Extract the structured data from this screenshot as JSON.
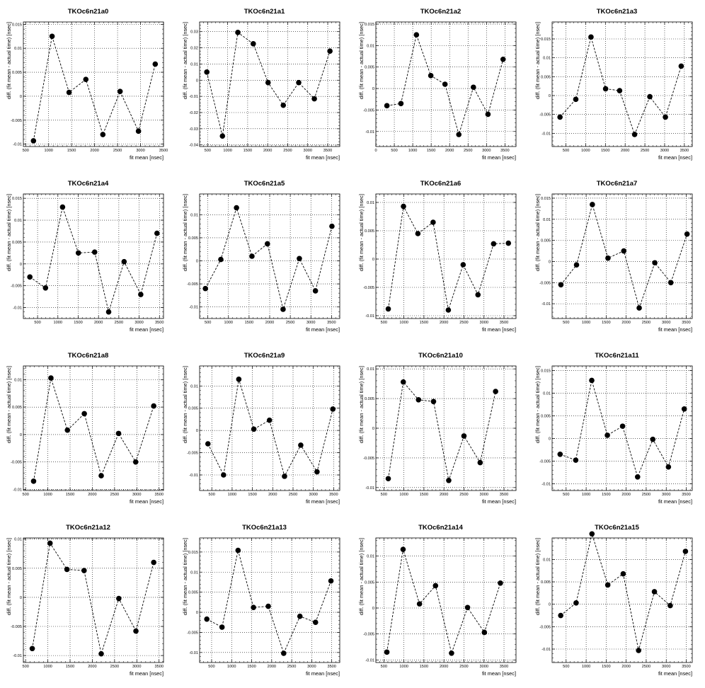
{
  "figure": {
    "xlabel": "fit mean [nsec]",
    "ylabel": "diff. (fit mean - actual time) [nsec]"
  },
  "chart_data": [
    {
      "type": "scatter",
      "title": "TKOc6n21a0",
      "xlim": [
        450,
        3500
      ],
      "ylim": [
        -0.0105,
        0.0155
      ],
      "xticks": [
        500,
        1000,
        1500,
        2000,
        2500,
        3000,
        3500
      ],
      "yticks": [
        -0.01,
        -0.005,
        0,
        0.005,
        0.01,
        0.015
      ],
      "ytick_labels": [
        "-0.01",
        "-0.005",
        "0",
        "0.005",
        "0.01",
        "0.015"
      ],
      "grid": true,
      "line_style": "dashed",
      "x": [
        670,
        1075,
        1445,
        1810,
        2180,
        2555,
        2955,
        3320
      ],
      "y": [
        -0.0093,
        0.0125,
        0.0008,
        0.0035,
        -0.008,
        0.001,
        -0.0073,
        0.0067
      ]
    },
    {
      "type": "scatter",
      "title": "TKOc6n21a1",
      "xlim": [
        300,
        3800
      ],
      "ylim": [
        -0.041,
        0.036
      ],
      "xticks": [
        500,
        1000,
        1500,
        2000,
        2500,
        3000,
        3500
      ],
      "yticks": [
        -0.04,
        -0.03,
        -0.02,
        -0.01,
        0,
        0.01,
        0.02,
        0.03
      ],
      "ytick_labels": [
        "-0.04",
        "-0.03",
        "-0.02",
        "-0.01",
        "0",
        "0.01",
        "0.02",
        "0.03"
      ],
      "grid": true,
      "line_style": "dashed",
      "x": [
        480,
        870,
        1255,
        1640,
        2010,
        2390,
        2775,
        3165,
        3555
      ],
      "y": [
        0.005,
        -0.0345,
        0.0295,
        0.0225,
        -0.0015,
        -0.0155,
        -0.0015,
        -0.0115,
        0.018
      ]
    },
    {
      "type": "scatter",
      "title": "TKOc6n21a2",
      "xlim": [
        0,
        3800
      ],
      "ylim": [
        -0.0135,
        0.0155
      ],
      "xticks": [
        0,
        500,
        1000,
        1500,
        2000,
        2500,
        3000,
        3500
      ],
      "yticks": [
        -0.01,
        -0.005,
        0,
        0.005,
        0.01,
        0.015
      ],
      "ytick_labels": [
        "-0.01",
        "-0.005",
        "0",
        "0.005",
        "0.01",
        "0.015"
      ],
      "grid": true,
      "line_style": "dashed",
      "x": [
        300,
        680,
        1100,
        1490,
        1875,
        2250,
        2645,
        3040,
        3450
      ],
      "y": [
        -0.004,
        -0.0035,
        0.0125,
        0.003,
        0.001,
        -0.0107,
        0.0003,
        -0.006,
        0.0068
      ]
    },
    {
      "type": "scatter",
      "title": "TKOc6n21a3",
      "xlim": [
        150,
        3700
      ],
      "ylim": [
        -0.0135,
        0.0195
      ],
      "xticks": [
        500,
        1000,
        1500,
        2000,
        2500,
        3000,
        3500
      ],
      "yticks": [
        -0.01,
        -0.005,
        0,
        0.005,
        0.01,
        0.015
      ],
      "ytick_labels": [
        "-0.01",
        "-0.005",
        "0",
        "0.005",
        "0.01",
        "0.015"
      ],
      "grid": true,
      "line_style": "dashed",
      "x": [
        350,
        750,
        1135,
        1505,
        1860,
        2240,
        2625,
        3020,
        3420
      ],
      "y": [
        -0.0057,
        -0.001,
        0.0155,
        0.0018,
        0.0013,
        -0.0103,
        -0.0003,
        -0.0057,
        0.0078
      ]
    },
    {
      "type": "scatter",
      "title": "TKOc6n21a4",
      "xlim": [
        150,
        3600
      ],
      "ylim": [
        -0.0125,
        0.016
      ],
      "xticks": [
        500,
        1000,
        1500,
        2000,
        2500,
        3000,
        3500
      ],
      "yticks": [
        -0.01,
        -0.005,
        0,
        0.005,
        0.01,
        0.015
      ],
      "ytick_labels": [
        "-0.01",
        "-0.005",
        "0",
        "0.005",
        "0.01",
        "0.015"
      ],
      "grid": true,
      "line_style": "dashed",
      "x": [
        310,
        695,
        1115,
        1505,
        1905,
        2250,
        2630,
        3040,
        3440
      ],
      "y": [
        -0.003,
        -0.0055,
        0.013,
        0.0025,
        0.0027,
        -0.011,
        0.0005,
        -0.007,
        0.007
      ]
    },
    {
      "type": "scatter",
      "title": "TKOc6n21a5",
      "xlim": [
        300,
        3700
      ],
      "ylim": [
        -0.0125,
        0.0145
      ],
      "xticks": [
        500,
        1000,
        1500,
        2000,
        2500,
        3000,
        3500
      ],
      "yticks": [
        -0.01,
        -0.005,
        0,
        0.005,
        0.01
      ],
      "ytick_labels": [
        "-0.01",
        "-0.005",
        "0",
        "0.005",
        "0.01"
      ],
      "grid": true,
      "line_style": "dashed",
      "x": [
        440,
        815,
        1195,
        1570,
        1945,
        2325,
        2720,
        3110,
        3510
      ],
      "y": [
        -0.006,
        0.0003,
        0.0115,
        0.001,
        0.0037,
        -0.0105,
        0.0005,
        -0.0065,
        0.0075
      ]
    },
    {
      "type": "scatter",
      "title": "TKOc6n21a6",
      "xlim": [
        300,
        3800
      ],
      "ylim": [
        -0.0105,
        0.0115
      ],
      "xticks": [
        500,
        1000,
        1500,
        2000,
        2500,
        3000,
        3500
      ],
      "yticks": [
        -0.01,
        -0.005,
        0,
        0.005,
        0.01
      ],
      "ytick_labels": [
        "-0.01",
        "-0.005",
        "0",
        "0.005",
        "0.01"
      ],
      "grid": true,
      "line_style": "dashed",
      "x": [
        610,
        990,
        1350,
        1730,
        2110,
        2480,
        2850,
        3240,
        3610
      ],
      "y": [
        -0.0088,
        0.0093,
        0.0045,
        0.0065,
        -0.009,
        -0.001,
        -0.0063,
        0.0027,
        0.0028
      ]
    },
    {
      "type": "scatter",
      "title": "TKOc6n21a7",
      "xlim": [
        150,
        3650
      ],
      "ylim": [
        -0.0135,
        0.016
      ],
      "xticks": [
        500,
        1000,
        1500,
        2000,
        2500,
        3000,
        3500
      ],
      "yticks": [
        -0.01,
        -0.005,
        0,
        0.005,
        0.01,
        0.015
      ],
      "ytick_labels": [
        "-0.01",
        "-0.005",
        "0",
        "0.005",
        "0.01",
        "0.015"
      ],
      "grid": true,
      "line_style": "dashed",
      "x": [
        370,
        760,
        1155,
        1545,
        1940,
        2325,
        2715,
        3115,
        3520
      ],
      "y": [
        -0.0055,
        -0.0008,
        0.0135,
        0.0008,
        0.0025,
        -0.011,
        -0.0003,
        -0.005,
        0.0065
      ]
    },
    {
      "type": "scatter",
      "title": "TKOc6n21a8",
      "xlim": [
        450,
        3600
      ],
      "ylim": [
        -0.0102,
        0.0125
      ],
      "xticks": [
        500,
        1000,
        1500,
        2000,
        2500,
        3000,
        3500
      ],
      "yticks": [
        -0.01,
        -0.005,
        0,
        0.005,
        0.01
      ],
      "ytick_labels": [
        "-0.01",
        "-0.005",
        "0",
        "0.005",
        "0.01"
      ],
      "grid": true,
      "line_style": "dashed",
      "x": [
        680,
        1070,
        1440,
        1820,
        2200,
        2590,
        2975,
        3380
      ],
      "y": [
        -0.0085,
        0.0103,
        0.0008,
        0.0038,
        -0.0075,
        0.0002,
        -0.005,
        0.0052
      ]
    },
    {
      "type": "scatter",
      "title": "TKOc6n21a9",
      "xlim": [
        200,
        3650
      ],
      "ylim": [
        -0.0135,
        0.0145
      ],
      "xticks": [
        500,
        1000,
        1500,
        2000,
        2500,
        3000,
        3500
      ],
      "yticks": [
        -0.01,
        -0.005,
        0,
        0.005,
        0.01
      ],
      "ytick_labels": [
        "-0.01",
        "-0.005",
        "0",
        "0.005",
        "0.01"
      ],
      "grid": true,
      "line_style": "dashed",
      "x": [
        405,
        790,
        1165,
        1535,
        1920,
        2290,
        2690,
        3090,
        3480
      ],
      "y": [
        -0.003,
        -0.01,
        0.0115,
        0.0003,
        0.0023,
        -0.0103,
        -0.0033,
        -0.0093,
        0.0048
      ]
    },
    {
      "type": "scatter",
      "title": "TKOc6n21a10",
      "xlim": [
        300,
        3800
      ],
      "ylim": [
        -0.0105,
        0.0105
      ],
      "xticks": [
        500,
        1000,
        1500,
        2000,
        2500,
        3000,
        3500
      ],
      "yticks": [
        -0.01,
        -0.005,
        0,
        0.005,
        0.01
      ],
      "ytick_labels": [
        "-0.01",
        "-0.005",
        "0",
        "0.005",
        "0.01"
      ],
      "grid": true,
      "line_style": "dashed",
      "x": [
        610,
        985,
        1365,
        1740,
        2120,
        2500,
        2905,
        3290
      ],
      "y": [
        -0.0085,
        0.0078,
        0.0048,
        0.0045,
        -0.0088,
        -0.0013,
        -0.0058,
        0.0062
      ]
    },
    {
      "type": "scatter",
      "title": "TKOc6n21a11",
      "xlim": [
        150,
        3650
      ],
      "ylim": [
        -0.0115,
        0.016
      ],
      "xticks": [
        500,
        1000,
        1500,
        2000,
        2500,
        3000,
        3500
      ],
      "yticks": [
        -0.01,
        -0.005,
        0,
        0.005,
        0.01,
        0.015
      ],
      "ytick_labels": [
        "-0.01",
        "-0.005",
        "0",
        "0.005",
        "0.01",
        "0.015"
      ],
      "grid": true,
      "line_style": "dashed",
      "x": [
        350,
        740,
        1140,
        1530,
        1910,
        2285,
        2665,
        3055,
        3450
      ],
      "y": [
        -0.0035,
        -0.0048,
        0.0128,
        0.0007,
        0.0027,
        -0.0085,
        -0.0002,
        -0.0063,
        0.0065
      ]
    },
    {
      "type": "scatter",
      "title": "TKOc6n21a12",
      "xlim": [
        450,
        3600
      ],
      "ylim": [
        -0.0112,
        0.0102
      ],
      "xticks": [
        500,
        1000,
        1500,
        2000,
        2500,
        3000,
        3500
      ],
      "yticks": [
        -0.01,
        -0.005,
        0,
        0.005,
        0.01
      ],
      "ytick_labels": [
        "-0.01",
        "-0.005",
        "0",
        "0.005",
        "0.01"
      ],
      "grid": true,
      "line_style": "dashed",
      "x": [
        650,
        1050,
        1430,
        1815,
        2200,
        2595,
        2980,
        3380
      ],
      "y": [
        -0.0088,
        0.0093,
        0.0048,
        0.0046,
        -0.0097,
        -0.0002,
        -0.0058,
        0.006
      ]
    },
    {
      "type": "scatter",
      "title": "TKOc6n21a13",
      "xlim": [
        200,
        3700
      ],
      "ylim": [
        -0.0125,
        0.0185
      ],
      "xticks": [
        500,
        1000,
        1500,
        2000,
        2500,
        3000,
        3500
      ],
      "yticks": [
        -0.01,
        -0.005,
        0,
        0.005,
        0.01,
        0.015
      ],
      "ytick_labels": [
        "-0.01",
        "-0.005",
        "0",
        "0.005",
        "0.01",
        "0.015"
      ],
      "grid": true,
      "line_style": "dashed",
      "x": [
        380,
        760,
        1160,
        1545,
        1915,
        2300,
        2705,
        3095,
        3480
      ],
      "y": [
        -0.0017,
        -0.0037,
        0.0154,
        0.0012,
        0.0015,
        -0.0102,
        -0.001,
        -0.0025,
        0.0078
      ]
    },
    {
      "type": "scatter",
      "title": "TKOc6n21a14",
      "xlim": [
        300,
        3800
      ],
      "ylim": [
        -0.0105,
        0.0135
      ],
      "xticks": [
        500,
        1000,
        1500,
        2000,
        2500,
        3000,
        3500
      ],
      "yticks": [
        -0.01,
        -0.005,
        0,
        0.005,
        0.01
      ],
      "ytick_labels": [
        "-0.01",
        "-0.005",
        "0",
        "0.005",
        "0.01"
      ],
      "grid": true,
      "line_style": "dashed",
      "x": [
        575,
        980,
        1390,
        1790,
        2190,
        2590,
        3010,
        3410
      ],
      "y": [
        -0.0085,
        0.0113,
        0.0008,
        0.0043,
        -0.0087,
        0.0001,
        -0.0047,
        0.0048
      ]
    },
    {
      "type": "scatter",
      "title": "TKOc6n21a15",
      "xlim": [
        150,
        3650
      ],
      "ylim": [
        -0.013,
        0.0148
      ],
      "xticks": [
        500,
        1000,
        1500,
        2000,
        2500,
        3000,
        3500
      ],
      "yticks": [
        -0.01,
        -0.005,
        0,
        0.005,
        0.01
      ],
      "ytick_labels": [
        "-0.01",
        "-0.005",
        "0",
        "0.005",
        "0.01"
      ],
      "grid": true,
      "line_style": "dashed",
      "x": [
        365,
        750,
        1145,
        1540,
        1925,
        2310,
        2705,
        3100,
        3480
      ],
      "y": [
        -0.0025,
        0.0003,
        0.0157,
        0.0043,
        0.0068,
        -0.0103,
        0.0028,
        -0.0003,
        0.0118
      ]
    }
  ]
}
